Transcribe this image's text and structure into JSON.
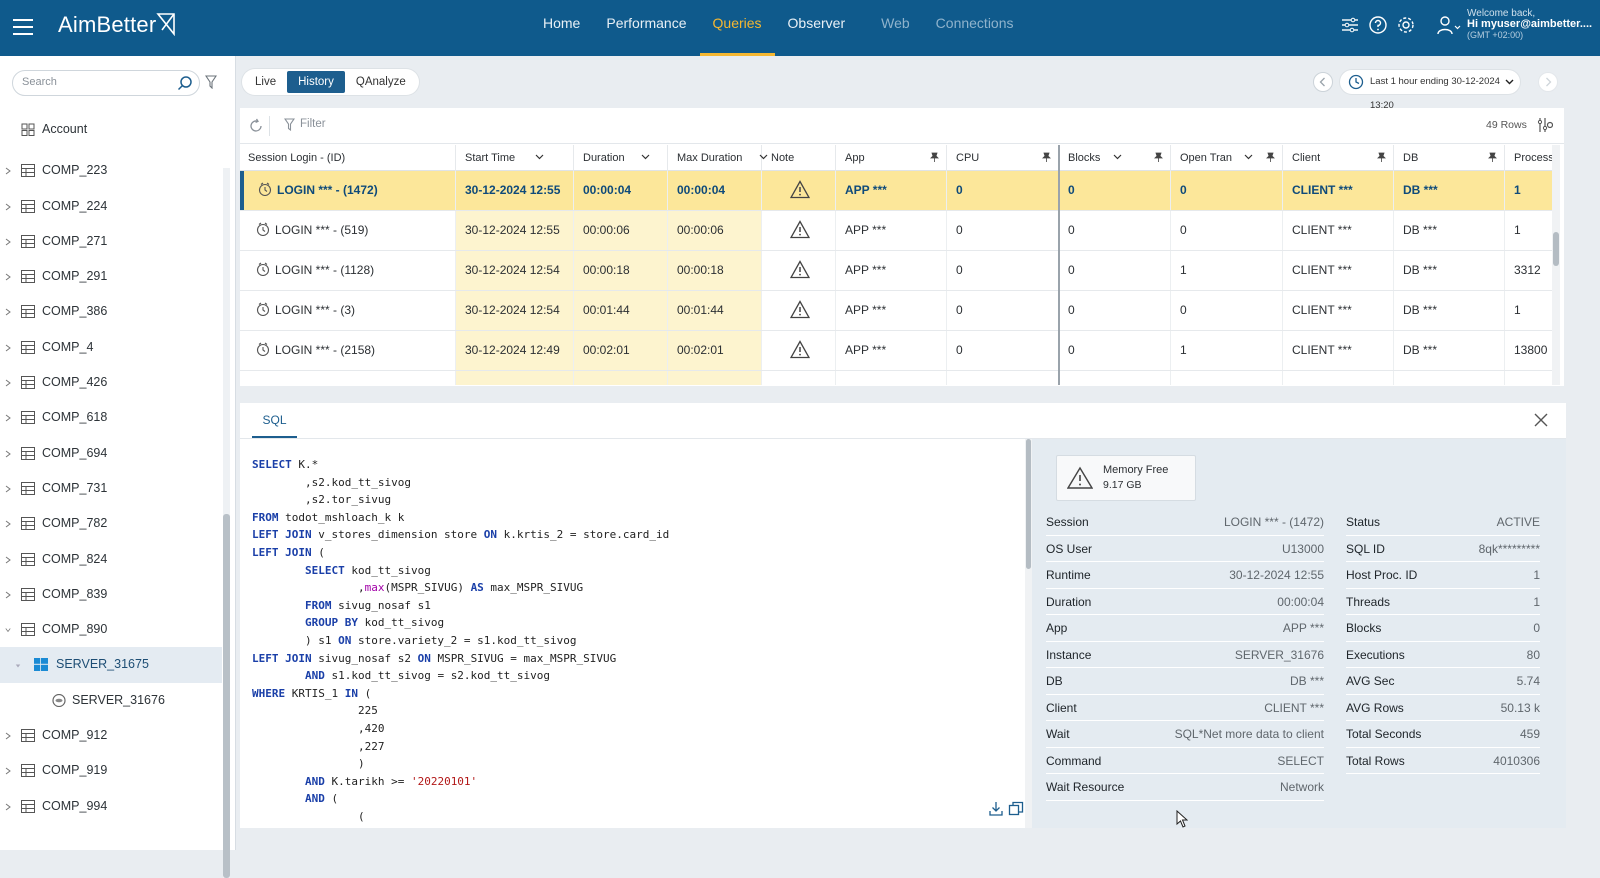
{
  "header": {
    "brand": "AimBetter",
    "nav": [
      {
        "label": "Home",
        "state": "normal"
      },
      {
        "label": "Performance",
        "state": "normal"
      },
      {
        "label": "Queries",
        "state": "active"
      },
      {
        "label": "Observer",
        "state": "normal"
      },
      {
        "label": "Web",
        "state": "dim"
      },
      {
        "label": "Connections",
        "state": "dim"
      }
    ],
    "welcome": "Welcome back,",
    "user": "Hi myuser@aimbetter....",
    "timezone": "(GMT +02:00)"
  },
  "sidebar": {
    "search_placeholder": "Search",
    "items": [
      {
        "label": "Account",
        "type": "account"
      },
      {
        "label": "COMP_223",
        "type": "comp"
      },
      {
        "label": "COMP_224",
        "type": "comp"
      },
      {
        "label": "COMP_271",
        "type": "comp"
      },
      {
        "label": "COMP_291",
        "type": "comp"
      },
      {
        "label": "COMP_386",
        "type": "comp"
      },
      {
        "label": "COMP_4",
        "type": "comp"
      },
      {
        "label": "COMP_426",
        "type": "comp"
      },
      {
        "label": "COMP_618",
        "type": "comp"
      },
      {
        "label": "COMP_694",
        "type": "comp"
      },
      {
        "label": "COMP_731",
        "type": "comp"
      },
      {
        "label": "COMP_782",
        "type": "comp"
      },
      {
        "label": "COMP_824",
        "type": "comp"
      },
      {
        "label": "COMP_839",
        "type": "comp"
      },
      {
        "label": "COMP_890",
        "type": "comp-open"
      },
      {
        "label": "SERVER_31675",
        "type": "server"
      },
      {
        "label": "SERVER_31676",
        "type": "instance"
      },
      {
        "label": "COMP_912",
        "type": "comp"
      },
      {
        "label": "COMP_919",
        "type": "comp"
      },
      {
        "label": "COMP_994",
        "type": "comp"
      }
    ]
  },
  "modes": [
    {
      "label": "Live",
      "on": false
    },
    {
      "label": "History",
      "on": true
    },
    {
      "label": "QAnalyze",
      "on": false
    }
  ],
  "time_range": "Last 1 hour ending  30-12-2024 13:20",
  "grid": {
    "filter_label": "Filter",
    "row_count": "49 Rows",
    "columns": [
      {
        "label": "Session Login - (ID)",
        "sort": false,
        "pin": false
      },
      {
        "label": "Start Time",
        "sort": true,
        "pin": false
      },
      {
        "label": "Duration",
        "sort": true,
        "pin": false
      },
      {
        "label": "Max Duration",
        "sort": true,
        "pin": false
      },
      {
        "label": "Note",
        "sort": false,
        "pin": false
      },
      {
        "label": "App",
        "sort": false,
        "pin": true
      },
      {
        "label": "CPU",
        "sort": false,
        "pin": true
      },
      {
        "label": "Blocks",
        "sort": true,
        "pin": true
      },
      {
        "label": "Open Tran",
        "sort": true,
        "pin": true
      },
      {
        "label": "Client",
        "sort": false,
        "pin": true
      },
      {
        "label": "DB",
        "sort": false,
        "pin": true
      },
      {
        "label": "Process Id",
        "sort": false,
        "pin": false
      }
    ],
    "rows": [
      {
        "session": "LOGIN *** - (1472)",
        "start": "30-12-2024 12:55",
        "duration": "00:00:04",
        "max": "00:00:04",
        "app": "APP ***",
        "cpu": "0",
        "blocks": "0",
        "open": "0",
        "client": "CLIENT ***",
        "db": "DB ***",
        "pid": "1"
      },
      {
        "session": "LOGIN *** - (519)",
        "start": "30-12-2024 12:55",
        "duration": "00:00:06",
        "max": "00:00:06",
        "app": "APP ***",
        "cpu": "0",
        "blocks": "0",
        "open": "0",
        "client": "CLIENT ***",
        "db": "DB ***",
        "pid": "1"
      },
      {
        "session": "LOGIN *** - (1128)",
        "start": "30-12-2024 12:54",
        "duration": "00:00:18",
        "max": "00:00:18",
        "app": "APP ***",
        "cpu": "0",
        "blocks": "0",
        "open": "1",
        "client": "CLIENT ***",
        "db": "DB ***",
        "pid": "3312"
      },
      {
        "session": "LOGIN *** - (3)",
        "start": "30-12-2024 12:54",
        "duration": "00:01:44",
        "max": "00:01:44",
        "app": "APP ***",
        "cpu": "0",
        "blocks": "0",
        "open": "0",
        "client": "CLIENT ***",
        "db": "DB ***",
        "pid": "1"
      },
      {
        "session": "LOGIN *** - (2158)",
        "start": "30-12-2024 12:49",
        "duration": "00:02:01",
        "max": "00:02:01",
        "app": "APP ***",
        "cpu": "0",
        "blocks": "0",
        "open": "1",
        "client": "CLIENT ***",
        "db": "DB ***",
        "pid": "13800"
      }
    ]
  },
  "detail": {
    "tab": "SQL",
    "sql_lines": [
      [
        [
          "kw",
          "SELECT"
        ],
        [
          "t",
          " K.*"
        ]
      ],
      [
        [
          "t",
          "        ,s2.kod_tt_sivog"
        ]
      ],
      [
        [
          "t",
          "        ,s2.tor_sivug"
        ]
      ],
      [
        [
          "kw",
          "FROM"
        ],
        [
          "t",
          " todot_mshloach_k k"
        ]
      ],
      [
        [
          "kw",
          "LEFT JOIN"
        ],
        [
          "t",
          " v_stores_dimension store "
        ],
        [
          "kw",
          "ON"
        ],
        [
          "t",
          " k.krtis_2 = store.card_id"
        ]
      ],
      [
        [
          "kw",
          "LEFT JOIN"
        ],
        [
          "t",
          " ("
        ]
      ],
      [
        [
          "t",
          "        "
        ],
        [
          "kw",
          "SELECT"
        ],
        [
          "t",
          " kod_tt_sivog"
        ]
      ],
      [
        [
          "t",
          "                ,"
        ],
        [
          "fn",
          "max"
        ],
        [
          "t",
          "(MSPR_SIVUG) "
        ],
        [
          "kw",
          "AS"
        ],
        [
          "t",
          " max_MSPR_SIVUG"
        ]
      ],
      [
        [
          "t",
          "        "
        ],
        [
          "kw",
          "FROM"
        ],
        [
          "t",
          " sivug_nosaf s1"
        ]
      ],
      [
        [
          "t",
          "        "
        ],
        [
          "kw",
          "GROUP BY"
        ],
        [
          "t",
          " kod_tt_sivog"
        ]
      ],
      [
        [
          "t",
          "        ) s1 "
        ],
        [
          "kw",
          "ON"
        ],
        [
          "t",
          " store.variety_2 = s1.kod_tt_sivog"
        ]
      ],
      [
        [
          "kw",
          "LEFT JOIN"
        ],
        [
          "t",
          " sivug_nosaf s2 "
        ],
        [
          "kw",
          "ON"
        ],
        [
          "t",
          " MSPR_SIVUG = max_MSPR_SIVUG"
        ]
      ],
      [
        [
          "t",
          "        "
        ],
        [
          "kw",
          "AND"
        ],
        [
          "t",
          " s1.kod_tt_sivog = s2.kod_tt_sivog"
        ]
      ],
      [
        [
          "kw",
          "WHERE"
        ],
        [
          "t",
          " KRTIS_1 "
        ],
        [
          "kw",
          "IN"
        ],
        [
          "t",
          " ("
        ]
      ],
      [
        [
          "t",
          "                225"
        ]
      ],
      [
        [
          "t",
          "                ,420"
        ]
      ],
      [
        [
          "t",
          "                ,227"
        ]
      ],
      [
        [
          "t",
          "                )"
        ]
      ],
      [
        [
          "t",
          "        "
        ],
        [
          "kw",
          "AND"
        ],
        [
          "t",
          " K.tarikh >= "
        ],
        [
          "str",
          "'20220101'"
        ]
      ],
      [
        [
          "t",
          "        "
        ],
        [
          "kw",
          "AND"
        ],
        [
          "t",
          " ("
        ]
      ],
      [
        [
          "t",
          "                ("
        ]
      ]
    ],
    "memory_label": "Memory Free",
    "memory_value": "9.17 GB",
    "left_kv": [
      {
        "k": "Session",
        "v": "LOGIN *** - (1472)"
      },
      {
        "k": "OS User",
        "v": "U13000"
      },
      {
        "k": "Runtime",
        "v": "30-12-2024 12:55"
      },
      {
        "k": "Duration",
        "v": "00:00:04"
      },
      {
        "k": "App",
        "v": "APP ***"
      },
      {
        "k": "Instance",
        "v": "SERVER_31676"
      },
      {
        "k": "DB",
        "v": "DB ***"
      },
      {
        "k": "Client",
        "v": "CLIENT ***"
      },
      {
        "k": "Wait",
        "v": "SQL*Net more data to client"
      },
      {
        "k": "Command",
        "v": "SELECT"
      },
      {
        "k": "Wait Resource",
        "v": "Network"
      }
    ],
    "right_kv": [
      {
        "k": "Status",
        "v": "ACTIVE"
      },
      {
        "k": "SQL ID",
        "v": "8qk*********"
      },
      {
        "k": "Host Proc. ID",
        "v": "1"
      },
      {
        "k": "Threads",
        "v": "1"
      },
      {
        "k": "Blocks",
        "v": "0"
      },
      {
        "k": "Executions",
        "v": "80"
      },
      {
        "k": "AVG Sec",
        "v": "5.74"
      },
      {
        "k": "AVG Rows",
        "v": "50.13 k"
      },
      {
        "k": "Total Seconds",
        "v": "459"
      },
      {
        "k": "Total Rows",
        "v": "4010306"
      }
    ]
  }
}
